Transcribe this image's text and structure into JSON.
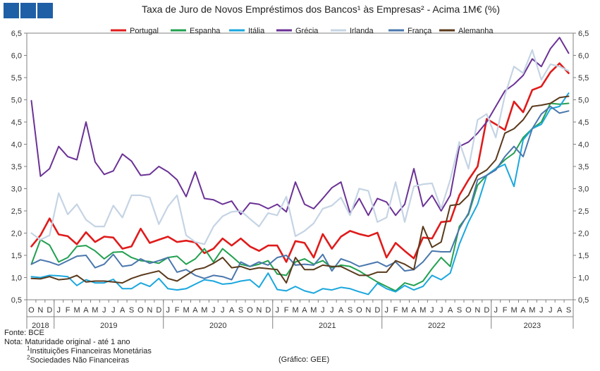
{
  "header": {
    "title": "Taxa de Juro de Novos Empréstimos  dos Bancos¹ às Empresas² - Acima 1M€ (%)"
  },
  "notes": {
    "source": "Fonte: BCE",
    "note": "Nota: Maturidade  original - até 1 ano",
    "fn1": "Instituições Financeiras Monetárias",
    "fn2": "Sociedades Não Financeiras",
    "credit": "(Gráfico: GEE)"
  },
  "chart_data": {
    "type": "line",
    "title": "Taxa de Juro de Novos Empréstimos  dos Bancos¹ às Empresas² - Acima 1M€ (%)",
    "ylim": [
      0.5,
      6.5
    ],
    "yticks": [
      "0,5",
      "1,0",
      "1,5",
      "2,0",
      "2,5",
      "3,0",
      "3,5",
      "4,0",
      "4,5",
      "5,0",
      "5,5",
      "6,0",
      "6,5"
    ],
    "grid": false,
    "legend": "top",
    "month_labels": [
      "O",
      "N",
      "D",
      "J",
      "F",
      "M",
      "A",
      "M",
      "J",
      "J",
      "A",
      "S",
      "O",
      "N",
      "D",
      "J",
      "F",
      "M",
      "A",
      "M",
      "J",
      "J",
      "A",
      "S",
      "O",
      "N",
      "D",
      "J",
      "F",
      "M",
      "A",
      "M",
      "J",
      "J",
      "A",
      "S",
      "O",
      "N",
      "D",
      "J",
      "F",
      "M",
      "A",
      "M",
      "J",
      "J",
      "A",
      "S",
      "O",
      "N",
      "D",
      "J",
      "F",
      "M",
      "A",
      "M",
      "J",
      "J",
      "A",
      "S"
    ],
    "years": [
      {
        "label": "2018",
        "start": 0,
        "end": 2
      },
      {
        "label": "2019",
        "start": 3,
        "end": 14
      },
      {
        "label": "2020",
        "start": 15,
        "end": 26
      },
      {
        "label": "2021",
        "start": 27,
        "end": 38
      },
      {
        "label": "2022",
        "start": 39,
        "end": 50
      },
      {
        "label": "2023",
        "start": 51,
        "end": 59
      }
    ],
    "x": [
      "2018-10",
      "2018-11",
      "2018-12",
      "2019-01",
      "2019-02",
      "2019-03",
      "2019-04",
      "2019-05",
      "2019-06",
      "2019-07",
      "2019-08",
      "2019-09",
      "2019-10",
      "2019-11",
      "2019-12",
      "2020-01",
      "2020-02",
      "2020-03",
      "2020-04",
      "2020-05",
      "2020-06",
      "2020-07",
      "2020-08",
      "2020-09",
      "2020-10",
      "2020-11",
      "2020-12",
      "2021-01",
      "2021-02",
      "2021-03",
      "2021-04",
      "2021-05",
      "2021-06",
      "2021-07",
      "2021-08",
      "2021-09",
      "2021-10",
      "2021-11",
      "2021-12",
      "2022-01",
      "2022-02",
      "2022-03",
      "2022-04",
      "2022-05",
      "2022-06",
      "2022-07",
      "2022-08",
      "2022-09",
      "2022-10",
      "2022-11",
      "2022-12",
      "2023-01",
      "2023-02",
      "2023-03",
      "2023-04",
      "2023-05",
      "2023-06",
      "2023-07",
      "2023-08",
      "2023-09"
    ],
    "series": [
      {
        "name": "Portugal",
        "color": "#e01b1b",
        "width": 2.6,
        "values": [
          1.7,
          1.95,
          2.33,
          1.97,
          1.93,
          1.75,
          2.02,
          1.8,
          1.92,
          1.9,
          1.65,
          1.7,
          2.1,
          1.78,
          1.85,
          1.92,
          1.8,
          1.83,
          1.79,
          1.55,
          1.65,
          1.88,
          1.72,
          1.88,
          1.7,
          1.6,
          1.72,
          1.72,
          1.35,
          1.82,
          1.78,
          1.45,
          1.98,
          1.65,
          1.92,
          2.05,
          1.98,
          1.93,
          2.01,
          1.45,
          1.78,
          1.6,
          1.43,
          1.9,
          1.88,
          2.25,
          2.27,
          2.85,
          3.2,
          3.5,
          4.57,
          4.45,
          4.32,
          4.96,
          4.72,
          5.22,
          5.3,
          5.62,
          5.82,
          5.6
        ]
      },
      {
        "name": "Espanha",
        "color": "#22a050",
        "width": 2,
        "values": [
          1.3,
          1.85,
          1.73,
          1.35,
          1.45,
          1.7,
          1.72,
          1.6,
          1.42,
          1.57,
          1.58,
          1.45,
          1.38,
          1.36,
          1.32,
          1.45,
          1.48,
          1.3,
          1.42,
          1.65,
          1.35,
          1.65,
          1.48,
          1.3,
          1.25,
          1.3,
          1.38,
          1.08,
          1.05,
          1.35,
          1.42,
          1.3,
          1.38,
          1.22,
          1.28,
          1.25,
          1.15,
          1.02,
          0.9,
          0.8,
          0.7,
          0.88,
          0.82,
          0.92,
          1.2,
          1.45,
          1.25,
          2.15,
          2.42,
          3.08,
          3.3,
          3.45,
          3.65,
          3.8,
          4.15,
          4.35,
          4.5,
          4.92,
          4.9,
          4.92
        ]
      },
      {
        "name": "Itália",
        "color": "#1aa7de",
        "width": 2,
        "values": [
          1.02,
          1.0,
          1.05,
          1.04,
          1.02,
          0.82,
          0.95,
          0.88,
          0.88,
          0.96,
          0.75,
          0.75,
          0.88,
          0.8,
          0.98,
          0.75,
          0.72,
          0.75,
          0.85,
          0.95,
          0.92,
          0.85,
          0.87,
          0.92,
          0.95,
          0.78,
          1.1,
          0.73,
          0.7,
          0.8,
          0.7,
          0.65,
          0.75,
          0.72,
          0.78,
          0.75,
          0.68,
          0.62,
          0.87,
          0.75,
          0.68,
          0.82,
          0.72,
          0.8,
          1.05,
          0.95,
          1.1,
          1.75,
          2.25,
          2.65,
          3.3,
          3.45,
          3.55,
          3.05,
          4.1,
          4.35,
          4.45,
          4.8,
          4.85,
          5.15
        ]
      },
      {
        "name": "Grécia",
        "color": "#6b3296",
        "width": 2,
        "values": [
          4.98,
          3.28,
          3.45,
          3.95,
          3.72,
          3.65,
          4.5,
          3.6,
          3.32,
          3.4,
          3.78,
          3.62,
          3.3,
          3.32,
          3.5,
          3.38,
          3.2,
          2.82,
          3.38,
          2.78,
          2.75,
          2.65,
          2.72,
          2.42,
          2.68,
          2.65,
          2.55,
          2.65,
          2.48,
          3.15,
          2.65,
          2.55,
          2.78,
          3.02,
          3.15,
          2.45,
          2.78,
          2.4,
          2.78,
          2.7,
          2.4,
          2.65,
          3.45,
          2.6,
          2.85,
          2.5,
          2.85,
          3.95,
          4.05,
          4.25,
          4.5,
          4.85,
          5.2,
          5.35,
          5.55,
          5.92,
          5.75,
          6.15,
          6.4,
          6.05
        ]
      },
      {
        "name": "Irlanda",
        "color": "#c5d4e4",
        "width": 2.2,
        "values": [
          2.0,
          1.85,
          1.95,
          2.9,
          2.42,
          2.65,
          2.3,
          2.15,
          2.15,
          2.62,
          2.35,
          2.85,
          2.85,
          2.8,
          2.2,
          2.6,
          2.85,
          1.95,
          1.8,
          1.75,
          2.15,
          2.38,
          2.48,
          2.5,
          2.32,
          2.15,
          2.45,
          2.4,
          2.82,
          1.93,
          2.05,
          2.22,
          2.55,
          2.62,
          2.8,
          2.4,
          3.0,
          2.95,
          2.25,
          2.35,
          3.15,
          2.25,
          3.05,
          3.1,
          3.12,
          2.55,
          3.2,
          4.05,
          3.45,
          4.55,
          4.68,
          4.15,
          5.1,
          5.75,
          5.6,
          6.12,
          5.45,
          5.8,
          5.75,
          5.65
        ]
      },
      {
        "name": "França",
        "color": "#4a77ad",
        "width": 2,
        "values": [
          1.3,
          1.4,
          1.35,
          1.28,
          1.38,
          1.48,
          1.5,
          1.22,
          1.3,
          1.52,
          1.25,
          1.28,
          1.42,
          1.32,
          1.38,
          1.45,
          1.12,
          1.18,
          1.05,
          0.98,
          1.05,
          1.02,
          0.95,
          1.35,
          1.25,
          1.35,
          1.28,
          1.45,
          1.5,
          1.28,
          1.3,
          1.28,
          1.52,
          1.15,
          1.42,
          1.35,
          1.25,
          1.3,
          1.35,
          1.25,
          1.35,
          1.15,
          1.18,
          1.35,
          1.6,
          1.58,
          1.58,
          2.1,
          2.45,
          3.2,
          3.3,
          3.42,
          3.72,
          3.95,
          3.72,
          4.35,
          4.68,
          4.85,
          4.7,
          4.75
        ]
      },
      {
        "name": "Alemanha",
        "color": "#5a3a1c",
        "width": 2,
        "values": [
          0.98,
          0.97,
          1.02,
          0.95,
          0.97,
          1.05,
          0.9,
          0.92,
          0.92,
          0.9,
          0.88,
          0.98,
          1.05,
          1.1,
          1.15,
          0.98,
          0.92,
          1.05,
          1.18,
          1.22,
          1.32,
          1.45,
          1.22,
          1.25,
          1.18,
          1.22,
          1.2,
          1.18,
          0.88,
          1.45,
          1.18,
          1.18,
          1.28,
          1.25,
          1.25,
          1.15,
          1.05,
          1.05,
          1.12,
          1.12,
          1.38,
          1.3,
          1.18,
          2.15,
          1.68,
          1.8,
          2.62,
          2.65,
          2.85,
          3.3,
          3.42,
          3.65,
          4.25,
          4.35,
          4.55,
          4.85,
          4.88,
          4.92,
          5.05,
          5.08
        ]
      }
    ]
  }
}
